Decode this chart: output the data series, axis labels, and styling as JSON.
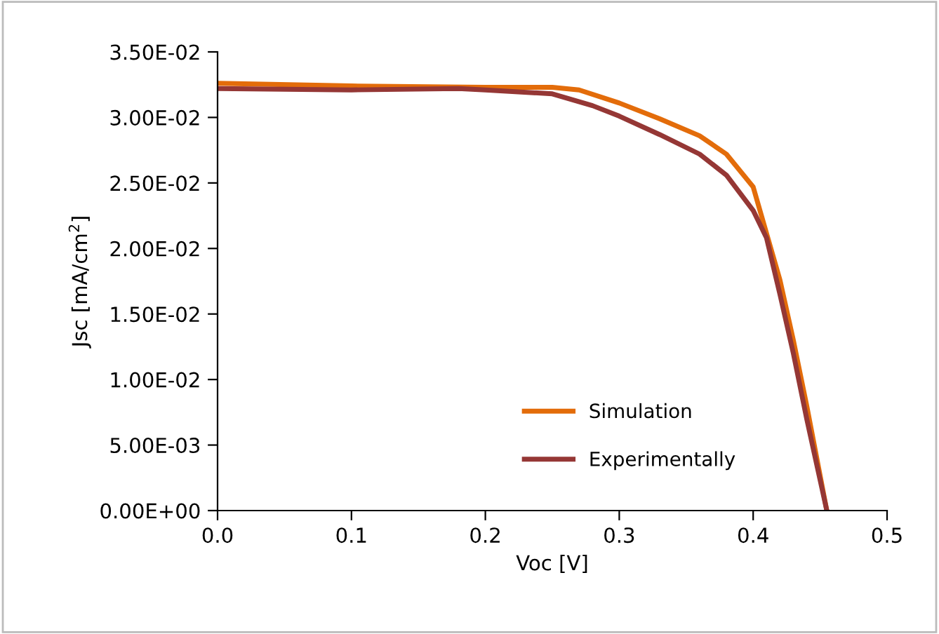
{
  "chart_data": {
    "type": "line",
    "xlabel": "Voc [V]",
    "ylabel": "Jsc [mA/cm$^{2}$]",
    "xlim": [
      0,
      0.5
    ],
    "xticks": [
      {
        "value": 0,
        "label": "0.0"
      },
      0.1,
      0.2,
      0.3,
      0.4,
      0.5
    ],
    "ylim": [
      0,
      0.035
    ],
    "yticks": [
      {
        "value": 0,
        "label": "0.00E+00"
      },
      {
        "value": 0.005,
        "label": "5.00E-03"
      },
      {
        "value": 0.01,
        "label": "1.00E-02"
      },
      {
        "value": 0.015,
        "label": "1.50E-02"
      },
      {
        "value": 0.02,
        "label": "2.00E-02"
      },
      {
        "value": 0.025,
        "label": "2.50E-02"
      },
      {
        "value": 0.03,
        "label": "3.00E-02"
      },
      {
        "value": 0.035,
        "label": "3.50E-02"
      }
    ],
    "grid": false,
    "legend": "bottom right",
    "marker": "none",
    "line_style": "solid",
    "series": [
      {
        "name": "Simulation",
        "color": "#e36c0a",
        "x": [
          0,
          0.1,
          0.2,
          0.25,
          0.27,
          0.3,
          0.33,
          0.36,
          0.38,
          0.4,
          0.42,
          0.43,
          0.44,
          0.455
        ],
        "values": [
          0.0326,
          0.0324,
          0.0323,
          0.0323,
          0.0321,
          0.0311,
          0.0299,
          0.0286,
          0.0272,
          0.0247,
          0.0176,
          0.013,
          0.008,
          0
        ]
      },
      {
        "name": "Experimentally",
        "color": "#953735",
        "x": [
          0,
          0.1,
          0.18,
          0.2,
          0.25,
          0.28,
          0.3,
          0.33,
          0.36,
          0.38,
          0.4,
          0.41,
          0.42,
          0.43,
          0.44,
          0.455
        ],
        "values": [
          0.0322,
          0.0321,
          0.0322,
          0.0321,
          0.0318,
          0.0309,
          0.0301,
          0.0287,
          0.0272,
          0.0256,
          0.0229,
          0.0208,
          0.0165,
          0.012,
          0.007,
          0
        ]
      }
    ]
  }
}
